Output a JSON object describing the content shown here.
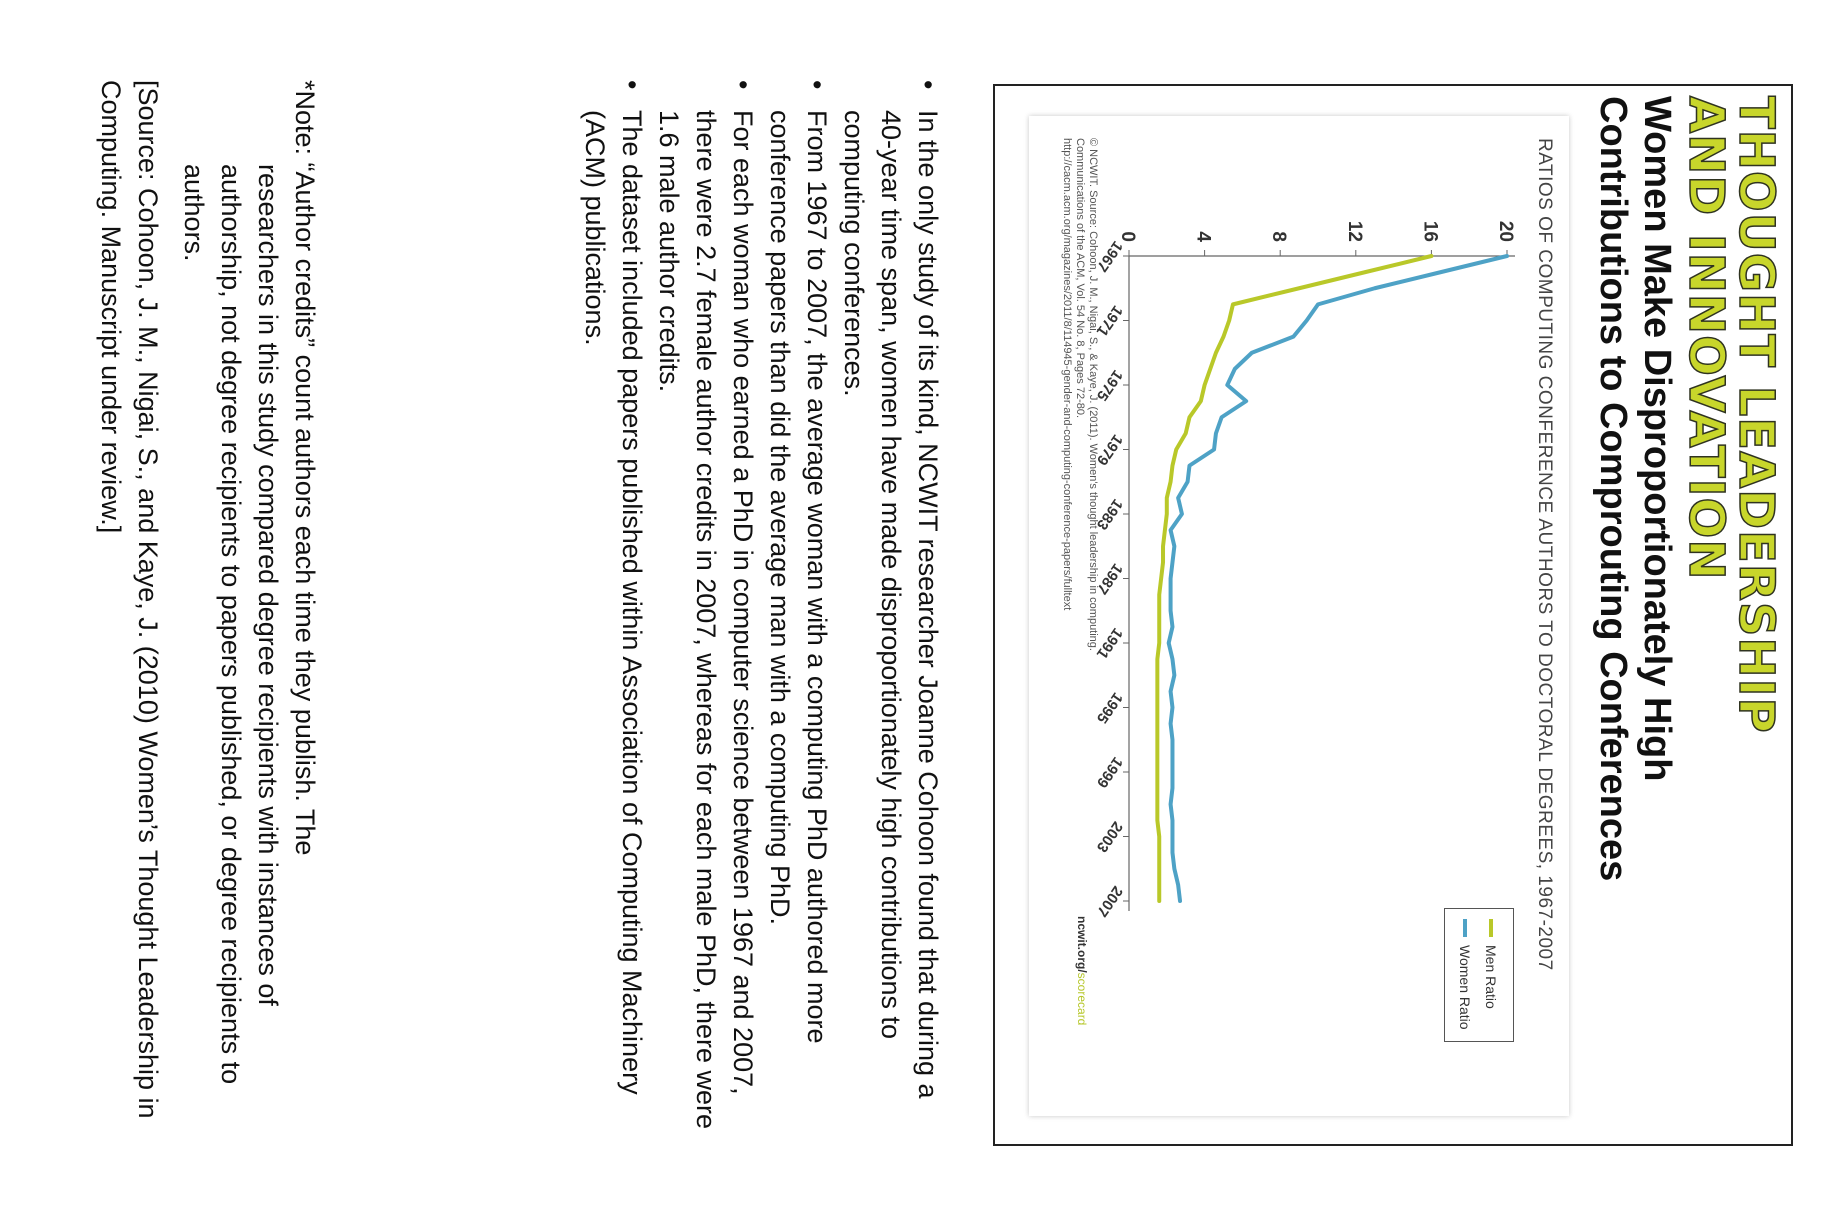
{
  "infographic": {
    "brand_title_line1": "THOUGHT LEADERSHIP",
    "brand_title_line2": "AND INNOVATION",
    "headline_line1": "Women Make Disproportionately High",
    "headline_line2": "Contributions to Comprouting Conferences",
    "source_note_line1": "© NCWIT. Source: Cohoon, J. M., Nigai, S., & Kaye, J. (2011). Women's thought leadership in computing.",
    "source_note_line2": "Communications of the ACM, Vol. 54 No. 8, Pages 72-80.",
    "source_note_line3": "http://cacm.acm.org/magazines/2011/8/114945-gender-and-computing-conference-papers/fulltext",
    "ncwit_link_prefix": "ncwit.org/",
    "ncwit_link_suffix": "scorecard"
  },
  "chart_data": {
    "type": "line",
    "title": "RATIOS OF COMPUTING CONFERENCE AUTHORS TO DOCTORAL DEGREES, 1967-2007",
    "xlim": [
      1967,
      2007
    ],
    "ylim": [
      0,
      20
    ],
    "x_ticks": [
      1967,
      1971,
      1975,
      1979,
      1983,
      1987,
      1991,
      1995,
      1999,
      2003,
      2007
    ],
    "y_ticks": [
      0,
      4,
      8,
      12,
      16,
      20
    ],
    "legend_position": "top-right",
    "grid": false,
    "x": [
      1967,
      1968,
      1969,
      1970,
      1971,
      1972,
      1973,
      1974,
      1975,
      1976,
      1977,
      1978,
      1979,
      1980,
      1981,
      1982,
      1983,
      1984,
      1985,
      1986,
      1987,
      1988,
      1989,
      1990,
      1991,
      1992,
      1993,
      1994,
      1995,
      1996,
      1997,
      1998,
      1999,
      2000,
      2001,
      2002,
      2003,
      2004,
      2005,
      2006,
      2007
    ],
    "series": [
      {
        "name": "Men Ratio",
        "color": "#b9c829",
        "values": [
          16,
          12.5,
          9,
          5.5,
          5.3,
          5,
          4.6,
          4.3,
          4.0,
          3.8,
          3.2,
          3.0,
          2.5,
          2.3,
          2.2,
          2.0,
          2.0,
          1.9,
          1.8,
          1.8,
          1.7,
          1.6,
          1.6,
          1.6,
          1.6,
          1.5,
          1.5,
          1.5,
          1.5,
          1.5,
          1.5,
          1.5,
          1.5,
          1.5,
          1.5,
          1.5,
          1.6,
          1.6,
          1.6,
          1.6,
          1.6
        ]
      },
      {
        "name": "Women Ratio",
        "color": "#4ea2c6",
        "values": [
          20,
          16.5,
          13,
          10,
          9.4,
          8.7,
          6.5,
          5.6,
          5.2,
          6.2,
          4.9,
          4.6,
          4.5,
          3.2,
          3.1,
          2.6,
          2.8,
          2.2,
          2.4,
          2.3,
          2.2,
          2.2,
          2.2,
          2.3,
          2.1,
          2.3,
          2.4,
          2.2,
          2.3,
          2.2,
          2.3,
          2.3,
          2.3,
          2.3,
          2.2,
          2.3,
          2.3,
          2.3,
          2.4,
          2.6,
          2.7
        ]
      }
    ]
  },
  "bullets": [
    "In the only study of its kind, NCWIT researcher Joanne Cohoon found that during a 40-year time span, women have made disproportionately high contributions to computing conferences.",
    "From 1967 to 2007, the average woman with a computing PhD authored more conference papers than did the average man with a computing PhD.",
    "For each woman who earned a PhD in computer science between 1967 and 2007, there were 2.7 female author credits in 2007, whereas for each male PhD, there were 1.6 male author credits.",
    "The dataset included papers published within Association of Computing Machinery (ACM) publications."
  ],
  "bullet_symbol": "•",
  "note_line1": "*Note: “Author credits” count authors each time they publish. The",
  "note_rest": "researchers in this study compared degree recipients with instances of authorship, not degree recipients to papers published, or degree recipients to authors.",
  "source_citation": "[Source: Cohoon, J. M., Nigai, S., and Kaye, J. (2010) Women’s Thought Leadership in Computing. Manuscript under review.]"
}
